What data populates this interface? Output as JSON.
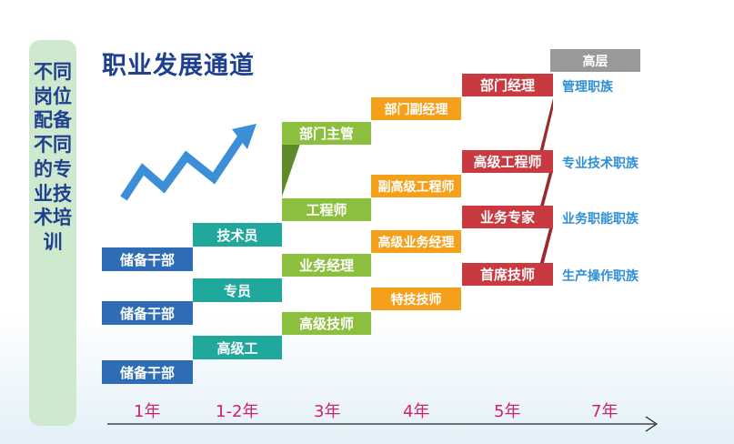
{
  "title": "职业发展通道",
  "sidebar_label": "不同岗位配备不同的专业技术培训",
  "years": [
    "1年",
    "1-2年",
    "3年",
    "4年",
    "5年",
    "7年"
  ],
  "columns": {
    "col1": [
      "储备干部",
      "储备干部",
      "储备干部"
    ],
    "col2": [
      "技术员",
      "专员",
      "高级工"
    ],
    "col3": [
      "部门主管",
      "工程师",
      "业务经理",
      "高级技师"
    ],
    "col4": [
      "部门副经理",
      "副高级工程师",
      "高级业务经理",
      "特技技师"
    ],
    "col5": [
      "部门经理",
      "高级工程师",
      "业务专家",
      "首席技师"
    ],
    "top": "高层"
  },
  "tracks": [
    "管理职族",
    "专业技术职族",
    "业务职能职族",
    "生产操作职族"
  ],
  "colors": {
    "col1": "#2e6db5",
    "col2": "#1fa89b",
    "col3": "#8dbf3e",
    "col4": "#f5a01a",
    "col5": "#c83a3f",
    "top": "#999999",
    "title": "#1f3f8f",
    "year": "#d0206b",
    "track": "#2e8fd6"
  },
  "icons": [
    "trend-arrow-icon",
    "timeline-arrow-icon"
  ]
}
